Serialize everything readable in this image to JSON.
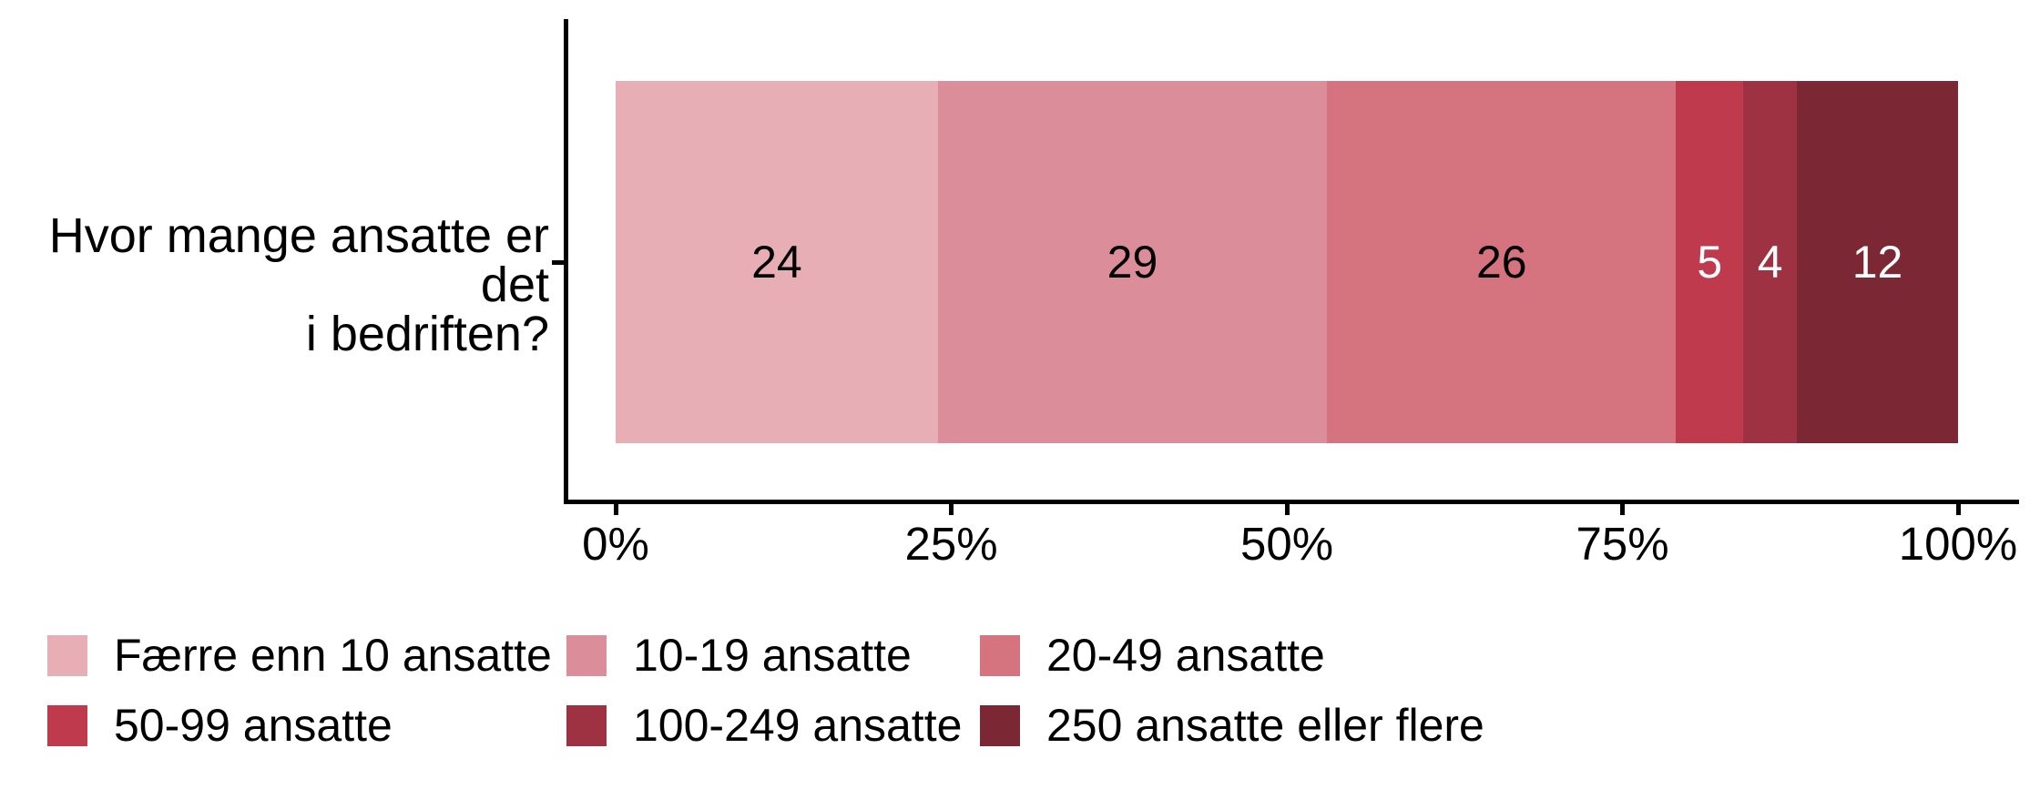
{
  "figure": {
    "background": "#FFFFFF",
    "axis_color": "#000000",
    "text_color": "#000000"
  },
  "chart_data": {
    "type": "bar",
    "subtype": "stacked-horizontal-100-percent",
    "title": "",
    "category_label": "Hvor mange ansatte er det\ni bedriften?",
    "categories": [
      "Hvor mange ansatte er det i bedriften?"
    ],
    "series": [
      {
        "name": "Færre enn 10 ansatte",
        "value": 24,
        "color": "#E7AEB6",
        "label_color": "#000000"
      },
      {
        "name": "10-19 ansatte",
        "value": 29,
        "color": "#DB8E99",
        "label_color": "#000000"
      },
      {
        "name": "20-49 ansatte",
        "value": 26,
        "color": "#D5737F",
        "label_color": "#000000"
      },
      {
        "name": "50-99 ansatte",
        "value": 5,
        "color": "#BF3A4C",
        "label_color": "#FFFFFF"
      },
      {
        "name": "100-249 ansatte",
        "value": 4,
        "color": "#9F3242",
        "label_color": "#FFFFFF"
      },
      {
        "name": "250 ansatte eller flere",
        "value": 12,
        "color": "#7C2734",
        "label_color": "#FFFFFF"
      }
    ],
    "value_labels_shown": true,
    "x_axis": {
      "tick_labels": [
        "0%",
        "25%",
        "50%",
        "75%",
        "100%"
      ],
      "range": [
        0,
        100
      ],
      "unit": "%"
    },
    "legend": {
      "position": "bottom",
      "rows": 2,
      "columns": 3
    }
  }
}
